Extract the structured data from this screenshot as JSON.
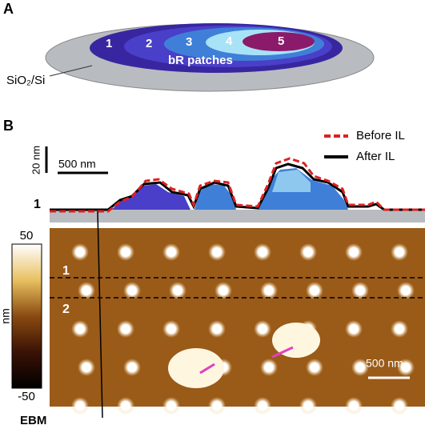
{
  "panel_a": {
    "label": "A",
    "layers": [
      "1",
      "2",
      "3",
      "4",
      "5"
    ],
    "patch_label": "bR patches",
    "substrate_label": "SiO₂/Si"
  },
  "panel_b": {
    "label": "B",
    "legend": [
      "Before IL",
      "After IL"
    ],
    "scale_height": "20 nm",
    "scale_width": "500 nm",
    "profile_label": "1",
    "colorbar_max": "50",
    "colorbar_min": "-50",
    "colorbar_unit": "nm",
    "line_labels": [
      "1",
      "2"
    ],
    "image_scale": "500 nm",
    "bottom_label": "EBM"
  }
}
